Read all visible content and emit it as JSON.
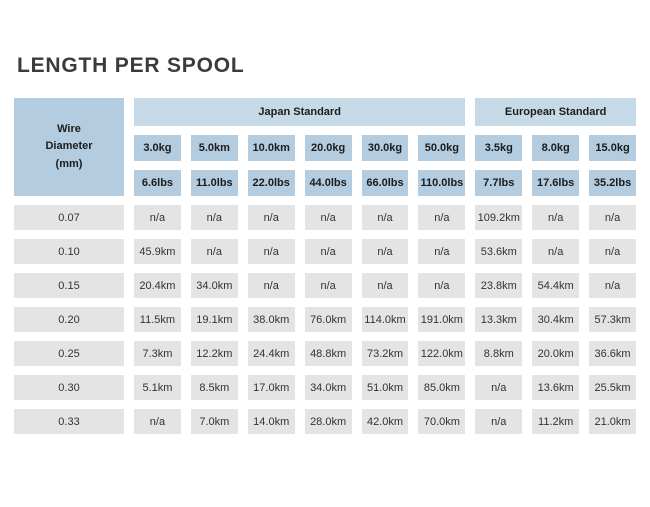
{
  "page": {
    "title": "LENGTH PER SPOOL"
  },
  "colors": {
    "group_band_blue": "#c6d9e7",
    "header_cell_blue": "#b3cce0",
    "data_cell_gray": "#e4e4e4",
    "title_text": "#3b3b3b",
    "header_text": "#1c1c1c",
    "data_text": "#333333",
    "background": "#ffffff"
  },
  "chart_data": {
    "type": "table",
    "title": "LENGTH PER SPOOL",
    "corner_label": "Wire\nDiameter\n(mm)",
    "groups": [
      {
        "label": "Japan Standard",
        "span": 6
      },
      {
        "label": "European Standard",
        "span": 3
      }
    ],
    "kg_headers": [
      "3.0kg",
      "5.0km",
      "10.0km",
      "20.0kg",
      "30.0kg",
      "50.0kg",
      "3.5kg",
      "8.0kg",
      "15.0kg"
    ],
    "lbs_headers": [
      "6.6lbs",
      "11.0lbs",
      "22.0lbs",
      "44.0lbs",
      "66.0lbs",
      "110.0lbs",
      "7.7lbs",
      "17.6lbs",
      "35.2lbs"
    ],
    "rows": [
      {
        "diameter": "0.07",
        "values": [
          "n/a",
          "n/a",
          "n/a",
          "n/a",
          "n/a",
          "n/a",
          "109.2km",
          "n/a",
          "n/a"
        ]
      },
      {
        "diameter": "0.10",
        "values": [
          "45.9km",
          "n/a",
          "n/a",
          "n/a",
          "n/a",
          "n/a",
          "53.6km",
          "n/a",
          "n/a"
        ]
      },
      {
        "diameter": "0.15",
        "values": [
          "20.4km",
          "34.0km",
          "n/a",
          "n/a",
          "n/a",
          "n/a",
          "23.8km",
          "54.4km",
          "n/a"
        ]
      },
      {
        "diameter": "0.20",
        "values": [
          "11.5km",
          "19.1km",
          "38.0km",
          "76.0km",
          "114.0km",
          "191.0km",
          "13.3km",
          "30.4km",
          "57.3km"
        ]
      },
      {
        "diameter": "0.25",
        "values": [
          "7.3km",
          "12.2km",
          "24.4km",
          "48.8km",
          "73.2km",
          "122.0km",
          "8.8km",
          "20.0km",
          "36.6km"
        ]
      },
      {
        "diameter": "0.30",
        "values": [
          "5.1km",
          "8.5km",
          "17.0km",
          "34.0km",
          "51.0km",
          "85.0km",
          "n/a",
          "13.6km",
          "25.5km"
        ]
      },
      {
        "diameter": "0.33",
        "values": [
          "n/a",
          "7.0km",
          "14.0km",
          "28.0km",
          "42.0km",
          "70.0km",
          "n/a",
          "11.2km",
          "21.0km"
        ]
      }
    ]
  }
}
